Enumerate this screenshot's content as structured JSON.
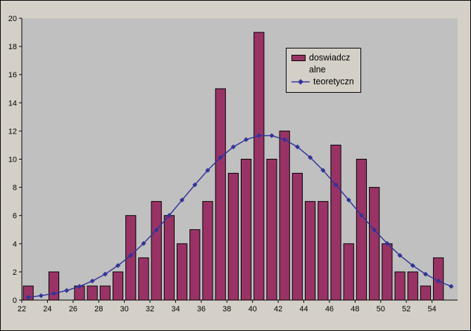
{
  "chart_data": {
    "type": "bar",
    "categories": [
      22,
      23,
      24,
      25,
      26,
      27,
      28,
      29,
      30,
      31,
      32,
      33,
      34,
      35,
      36,
      37,
      38,
      39,
      40,
      41,
      42,
      43,
      44,
      45,
      46,
      47,
      48,
      49,
      50,
      51,
      52,
      53,
      54,
      55
    ],
    "series": [
      {
        "name": "doswiadczalne",
        "type": "bar",
        "color": "#993366",
        "values": [
          1,
          0,
          2,
          0,
          1,
          1,
          1,
          2,
          6,
          3,
          7,
          6,
          4,
          5,
          7,
          15,
          9,
          10,
          19,
          10,
          12,
          9,
          7,
          7,
          11,
          4,
          10,
          8,
          4,
          2,
          2,
          1,
          3,
          0
        ]
      },
      {
        "name": "teoretyczn",
        "type": "line",
        "color": "#333399",
        "values": [
          0.2,
          0.31,
          0.47,
          0.68,
          0.97,
          1.35,
          1.84,
          2.45,
          3.17,
          4.02,
          4.98,
          6.01,
          7.1,
          8.18,
          9.21,
          10.12,
          10.87,
          11.39,
          11.67,
          11.67,
          11.39,
          10.87,
          10.12,
          9.21,
          8.18,
          7.1,
          6.01,
          4.98,
          4.02,
          3.17,
          2.45,
          1.84,
          1.35,
          0.97
        ]
      }
    ],
    "xlabel": "",
    "ylabel": "",
    "ylim": [
      0,
      20
    ],
    "y_tick_labels": [
      "0",
      "2",
      "4",
      "6",
      "8",
      "10",
      "12",
      "14",
      "16",
      "18",
      "20"
    ],
    "x_tick_labels": [
      "22",
      "24",
      "26",
      "28",
      "30",
      "32",
      "34",
      "36",
      "38",
      "40",
      "42",
      "44",
      "46",
      "48",
      "50",
      "52",
      "54"
    ],
    "grid": false,
    "legend_position": "inside-top-right",
    "legend": {
      "experimental_line1": "doswiadcz",
      "experimental_line2": "alne",
      "theoretical": "teoretyczn"
    },
    "colors": {
      "chart_bg": "#d4d0c8",
      "plot_bg": "#c0c0c0",
      "bar_fill": "#993366",
      "bar_border": "#000000",
      "line_color": "#333399",
      "axis_color": "#000000",
      "text_color": "#000000"
    }
  }
}
